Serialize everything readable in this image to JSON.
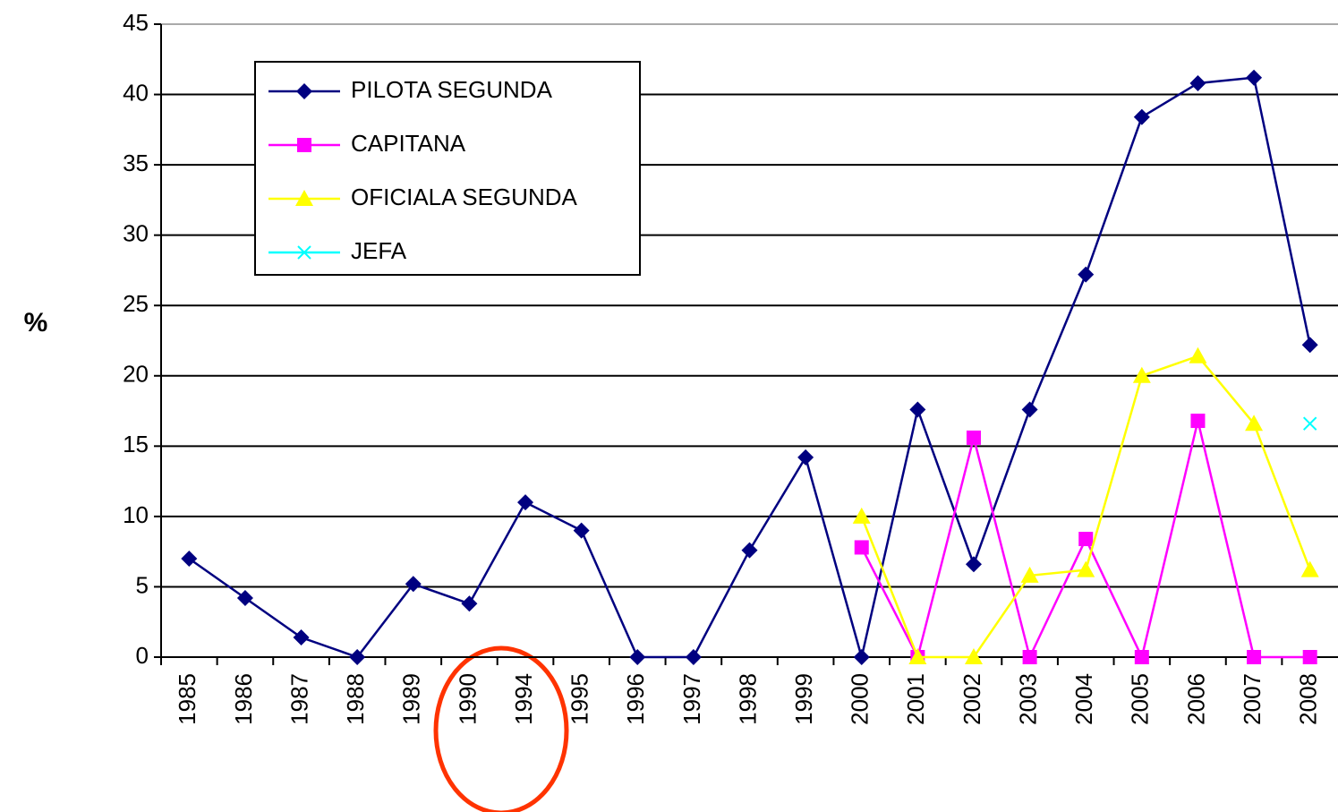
{
  "chart_data": {
    "type": "line",
    "ylabel": "%",
    "categories": [
      "1985",
      "1986",
      "1987",
      "1988",
      "1989",
      "1990",
      "1994",
      "1995",
      "1996",
      "1997",
      "1998",
      "1999",
      "2000",
      "2001",
      "2002",
      "2003",
      "2004",
      "2005",
      "2006",
      "2007",
      "2008"
    ],
    "series": [
      {
        "name": "PILOTA SEGUNDA",
        "color": "#000080",
        "marker": "diamond",
        "values": [
          7,
          4.2,
          1.4,
          0,
          5.2,
          3.8,
          11,
          9,
          0,
          0,
          7.6,
          14.2,
          0,
          17.6,
          6.6,
          17.6,
          27.2,
          38.4,
          40.8,
          41.2,
          22.2
        ]
      },
      {
        "name": "CAPITANA",
        "color": "#ff00ff",
        "marker": "square",
        "values": [
          null,
          null,
          null,
          null,
          null,
          null,
          null,
          null,
          null,
          null,
          null,
          null,
          7.8,
          0,
          15.6,
          0,
          8.4,
          0,
          16.8,
          0,
          0
        ]
      },
      {
        "name": "OFICIALA SEGUNDA",
        "color": "#ffff00",
        "marker": "triangle",
        "values": [
          null,
          null,
          null,
          null,
          null,
          null,
          null,
          null,
          null,
          null,
          null,
          null,
          10,
          0,
          0,
          5.8,
          6.2,
          20,
          21.4,
          16.6,
          6.2
        ]
      },
      {
        "name": "JEFA",
        "color": "#00ffff",
        "marker": "x",
        "values": [
          null,
          null,
          null,
          null,
          null,
          null,
          null,
          null,
          null,
          null,
          null,
          null,
          null,
          null,
          null,
          null,
          null,
          null,
          null,
          null,
          16.6
        ]
      }
    ],
    "ylim": [
      0,
      45
    ],
    "yticks": [
      0,
      5,
      10,
      15,
      20,
      25,
      30,
      35,
      40,
      45
    ],
    "grid": true,
    "legend": "upper left"
  }
}
